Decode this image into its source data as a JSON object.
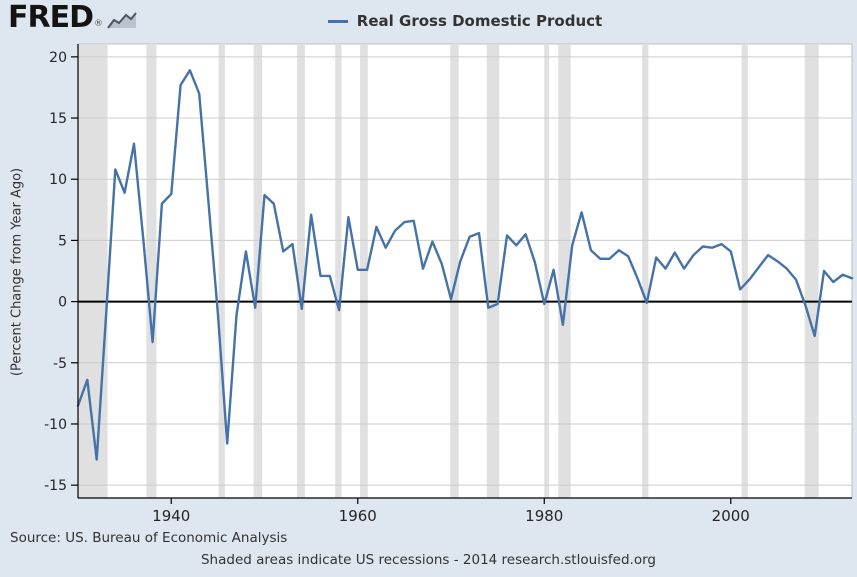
{
  "header": {
    "logo_text": "FRED",
    "registered_mark": "®"
  },
  "footer": {
    "source": "Source: US. Bureau of Economic Analysis",
    "note": "Shaded areas indicate US recessions - 2014 research.stlouisfed.org"
  },
  "colors": {
    "background": "#dee6ef",
    "plot_background": "#ffffff",
    "plot_border": "#c0c0c0",
    "line": "#4572a7",
    "recession": "#e0e0e0",
    "gridline": "#cccccc",
    "zero_line": "#000000",
    "axis": "#000000",
    "tick_text": "#262626"
  },
  "chart_data": {
    "type": "line",
    "title": "Real Gross Domestic Product",
    "subtitle": "",
    "xlabel": "",
    "ylabel": "(Percent Change from Year Ago)",
    "xlim": [
      1930,
      2013
    ],
    "ylim": [
      -15,
      20
    ],
    "xticks": [
      1940,
      1960,
      1980,
      2000
    ],
    "yticks": [
      20,
      15,
      10,
      5,
      0,
      -5,
      -10,
      -15
    ],
    "grid": "horizontal",
    "legend_position": "top",
    "series": [
      {
        "name": "Real Gross Domestic Product",
        "x": [
          1930,
          1931,
          1932,
          1933,
          1934,
          1935,
          1936,
          1937,
          1938,
          1939,
          1940,
          1941,
          1942,
          1943,
          1944,
          1945,
          1946,
          1947,
          1948,
          1949,
          1950,
          1951,
          1952,
          1953,
          1954,
          1955,
          1956,
          1957,
          1958,
          1959,
          1960,
          1961,
          1962,
          1963,
          1964,
          1965,
          1966,
          1967,
          1968,
          1969,
          1970,
          1971,
          1972,
          1973,
          1974,
          1975,
          1976,
          1977,
          1978,
          1979,
          1980,
          1981,
          1982,
          1983,
          1984,
          1985,
          1986,
          1987,
          1988,
          1989,
          1990,
          1991,
          1992,
          1993,
          1994,
          1995,
          1996,
          1997,
          1998,
          1999,
          2000,
          2001,
          2002,
          2003,
          2004,
          2005,
          2006,
          2007,
          2008,
          2009,
          2010,
          2011,
          2012,
          2013
        ],
        "values": [
          -8.5,
          -6.4,
          -12.9,
          -1.2,
          10.8,
          8.9,
          12.9,
          5.1,
          -3.3,
          8.0,
          8.8,
          17.7,
          18.9,
          17.0,
          8.0,
          -1.0,
          -11.6,
          -1.1,
          4.1,
          -0.5,
          8.7,
          8.0,
          4.1,
          4.7,
          -0.6,
          7.1,
          2.1,
          2.1,
          -0.7,
          6.9,
          2.6,
          2.6,
          6.1,
          4.4,
          5.8,
          6.5,
          6.6,
          2.7,
          4.9,
          3.1,
          0.2,
          3.3,
          5.3,
          5.6,
          -0.5,
          -0.2,
          5.4,
          4.6,
          5.5,
          3.2,
          -0.2,
          2.6,
          -1.9,
          4.6,
          7.3,
          4.2,
          3.5,
          3.5,
          4.2,
          3.7,
          1.9,
          -0.1,
          3.6,
          2.7,
          4.0,
          2.7,
          3.8,
          4.5,
          4.4,
          4.7,
          4.1,
          1.0,
          1.8,
          2.8,
          3.8,
          3.3,
          2.7,
          1.8,
          -0.3,
          -2.8,
          2.5,
          1.6,
          2.2,
          1.9
        ]
      }
    ],
    "recession_bands": [
      [
        1929.67,
        1933.17
      ],
      [
        1937.33,
        1938.42
      ],
      [
        1945.08,
        1945.75
      ],
      [
        1948.83,
        1949.75
      ],
      [
        1953.5,
        1954.33
      ],
      [
        1957.58,
        1958.25
      ],
      [
        1960.25,
        1961.08
      ],
      [
        1969.92,
        1970.83
      ],
      [
        1973.83,
        1975.17
      ],
      [
        1980.0,
        1980.5
      ],
      [
        1981.5,
        1982.83
      ],
      [
        1990.5,
        1991.17
      ],
      [
        2001.17,
        2001.83
      ],
      [
        2007.92,
        2009.42
      ]
    ]
  }
}
